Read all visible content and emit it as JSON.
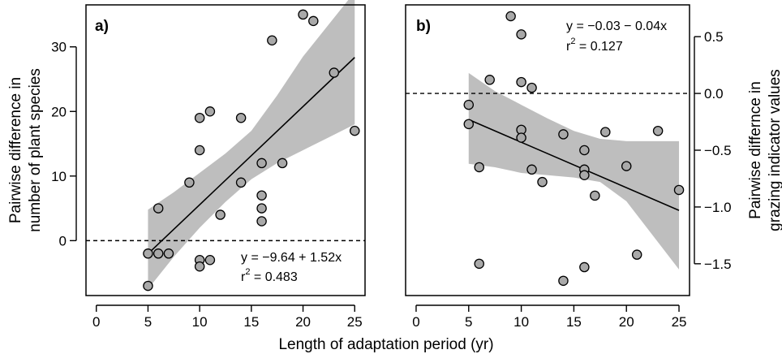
{
  "figure": {
    "xlabel": "Length of adaptation period (yr)"
  },
  "chart_data": [
    {
      "type": "scatter",
      "panel_label": "a)",
      "ylabel_line1": "Pairwise difference in",
      "ylabel_line2": "number of plant species",
      "ylabel_side": "left",
      "xlim": [
        -1,
        26
      ],
      "ylim": [
        -8.5,
        36.5
      ],
      "xticks": [
        0,
        5,
        10,
        15,
        20,
        25
      ],
      "yticks": [
        0,
        10,
        20,
        30
      ],
      "reference_line": {
        "y": 0,
        "style": "dashed"
      },
      "regression": {
        "intercept": -9.64,
        "slope": 1.52,
        "x_range": [
          5,
          25
        ]
      },
      "confidence_band": {
        "x": [
          5,
          7.5,
          10,
          12.5,
          15,
          17.5,
          20,
          22.5,
          25
        ],
        "lower": [
          -7.5,
          -2.5,
          2.0,
          6.0,
          9.5,
          12.0,
          14.0,
          16.0,
          18.0
        ],
        "upper": [
          4.8,
          7.5,
          10.5,
          13.5,
          17.0,
          22.5,
          28.5,
          33.5,
          38.5
        ]
      },
      "equation_text": "y = −9.64 + 1.52x",
      "r2_prefix": "r",
      "r2_exponent": "2",
      "r2_value": " = 0.483",
      "points": [
        [
          5,
          -2
        ],
        [
          5,
          -7
        ],
        [
          6,
          5
        ],
        [
          6,
          -2
        ],
        [
          7,
          -2
        ],
        [
          9,
          9
        ],
        [
          10,
          19
        ],
        [
          10,
          14
        ],
        [
          10,
          -3
        ],
        [
          10,
          -4
        ],
        [
          11,
          20
        ],
        [
          11,
          -3
        ],
        [
          12,
          4
        ],
        [
          14,
          19
        ],
        [
          14,
          9
        ],
        [
          16,
          12
        ],
        [
          16,
          7
        ],
        [
          16,
          5
        ],
        [
          16,
          3
        ],
        [
          17,
          31
        ],
        [
          18,
          12
        ],
        [
          20,
          35
        ],
        [
          21,
          34
        ],
        [
          23,
          26
        ],
        [
          25,
          17
        ]
      ]
    },
    {
      "type": "scatter",
      "panel_label": "b)",
      "ylabel_line1": "Pairwise differnce in",
      "ylabel_line2": "grazing indicator values",
      "ylabel_side": "right",
      "xlim": [
        -1,
        26
      ],
      "ylim": [
        -1.78,
        0.78
      ],
      "xticks": [
        0,
        5,
        10,
        15,
        20,
        25
      ],
      "yticks": [
        -1.5,
        -1.0,
        -0.5,
        0.0,
        0.5
      ],
      "ytick_labels": [
        "−1.5",
        "−1.0",
        "−0.5",
        "0.0",
        "0.5"
      ],
      "reference_line": {
        "y": 0,
        "style": "dashed"
      },
      "regression": {
        "intercept": -0.03,
        "slope": -0.04,
        "x_range": [
          5,
          25
        ]
      },
      "confidence_band": {
        "x": [
          5,
          7.5,
          10,
          12.5,
          15,
          17.5,
          20,
          22.5,
          25
        ],
        "lower": [
          -0.62,
          -0.65,
          -0.7,
          -0.72,
          -0.74,
          -0.78,
          -0.95,
          -1.25,
          -1.55
        ],
        "upper": [
          0.18,
          0.02,
          -0.1,
          -0.22,
          -0.33,
          -0.4,
          -0.42,
          -0.42,
          -0.42
        ]
      },
      "equation_text": "y = −0.03 − 0.04x",
      "r2_prefix": "r",
      "r2_exponent": "2",
      "r2_value": " = 0.127",
      "points": [
        [
          5,
          -0.1
        ],
        [
          5,
          -0.27
        ],
        [
          6,
          -0.65
        ],
        [
          6,
          -1.5
        ],
        [
          7,
          0.12
        ],
        [
          9,
          0.68
        ],
        [
          10,
          0.52
        ],
        [
          10,
          0.1
        ],
        [
          10,
          -0.32
        ],
        [
          10,
          -0.39
        ],
        [
          11,
          0.05
        ],
        [
          11,
          -0.67
        ],
        [
          12,
          -0.78
        ],
        [
          14,
          -0.36
        ],
        [
          14,
          -1.65
        ],
        [
          16,
          -0.5
        ],
        [
          16,
          -0.67
        ],
        [
          16,
          -0.72
        ],
        [
          16,
          -1.53
        ],
        [
          17,
          -0.9
        ],
        [
          18,
          -0.34
        ],
        [
          20,
          -0.64
        ],
        [
          21,
          -1.42
        ],
        [
          23,
          -0.33
        ],
        [
          25,
          -0.85
        ]
      ]
    }
  ]
}
